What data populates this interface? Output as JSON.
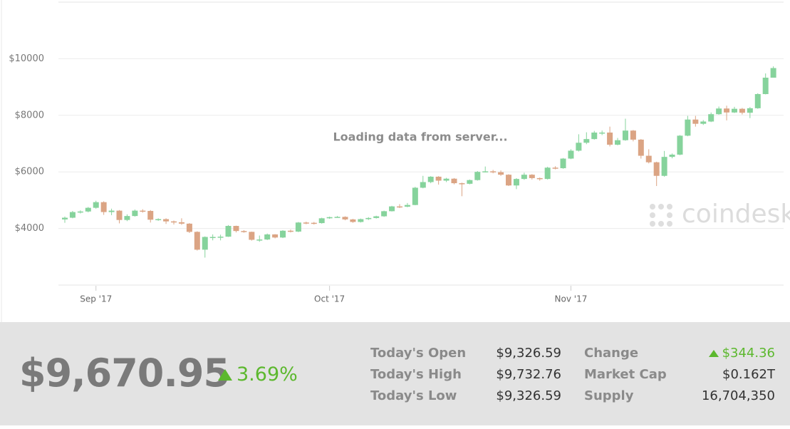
{
  "chart_data": {
    "type": "candlestick",
    "annotation": "Loading data from server...",
    "watermark": "coindesk",
    "categories": [
      null,
      null,
      null,
      null,
      "Sep '17",
      null,
      null,
      null,
      null,
      null,
      null,
      null,
      null,
      null,
      null,
      null,
      null,
      null,
      null,
      null,
      null,
      null,
      null,
      null,
      null,
      null,
      null,
      null,
      null,
      null,
      null,
      null,
      null,
      null,
      "Oct '17",
      null,
      null,
      null,
      null,
      null,
      null,
      null,
      null,
      null,
      null,
      null,
      null,
      null,
      null,
      null,
      null,
      null,
      null,
      null,
      null,
      null,
      null,
      null,
      null,
      null,
      null,
      null,
      null,
      null,
      null,
      "Nov '17",
      null,
      null,
      null,
      null,
      null,
      null,
      null,
      null,
      null,
      null,
      null,
      null,
      null,
      null,
      null,
      null,
      null,
      null,
      null,
      null,
      null,
      null,
      null,
      null,
      null,
      null
    ],
    "open": [
      4320,
      4380,
      4580,
      4600,
      4730,
      4930,
      4580,
      4630,
      4300,
      4440,
      4630,
      4620,
      4310,
      4330,
      4250,
      4220,
      4170,
      3880,
      3250,
      3700,
      3700,
      3710,
      4090,
      3910,
      3880,
      3600,
      3610,
      3790,
      3680,
      3920,
      3890,
      4210,
      4200,
      4190,
      4360,
      4400,
      4410,
      4320,
      4230,
      4330,
      4370,
      4430,
      4610,
      4780,
      4770,
      4830,
      5440,
      5640,
      5830,
      5690,
      5760,
      5600,
      5580,
      5710,
      6000,
      6020,
      5990,
      5900,
      5520,
      5750,
      5900,
      5780,
      5750,
      6150,
      6130,
      6470,
      6750,
      7030,
      7160,
      7390,
      7390,
      6960,
      7120,
      7460,
      7140,
      6570,
      6340,
      5860,
      6530,
      6610,
      7280,
      7850,
      7700,
      7780,
      8040,
      8240,
      8100,
      8230,
      8090,
      8250,
      8750,
      9330
    ],
    "high": [
      4420,
      4620,
      4640,
      4760,
      4980,
      4960,
      4700,
      4650,
      4500,
      4670,
      4680,
      4650,
      4360,
      4360,
      4280,
      4360,
      4190,
      3900,
      3720,
      3790,
      3780,
      4120,
      4100,
      3940,
      3890,
      3750,
      3820,
      3800,
      3940,
      3960,
      4230,
      4240,
      4230,
      4380,
      4420,
      4440,
      4430,
      4340,
      4350,
      4400,
      4450,
      4630,
      4800,
      4860,
      4900,
      5470,
      5860,
      5850,
      5850,
      5790,
      5780,
      5620,
      5730,
      6030,
      6190,
      6070,
      6050,
      5920,
      5780,
      5970,
      5920,
      5800,
      6180,
      6200,
      6490,
      6800,
      7330,
      7400,
      7450,
      7460,
      7600,
      7200,
      7880,
      7480,
      7160,
      6800,
      6360,
      6740,
      6650,
      7300,
      7980,
      7980,
      7830,
      8100,
      8310,
      8340,
      8300,
      8260,
      8290,
      8780,
      9480,
      9730
    ],
    "low": [
      4200,
      4360,
      4530,
      4570,
      4700,
      4480,
      4470,
      4180,
      4260,
      4420,
      4560,
      4210,
      4270,
      4160,
      4140,
      4130,
      3840,
      3220,
      2970,
      3580,
      3580,
      3700,
      3860,
      3850,
      3570,
      3530,
      3590,
      3650,
      3660,
      3860,
      3870,
      4150,
      4140,
      4170,
      4340,
      4380,
      4290,
      4200,
      4210,
      4300,
      4350,
      4410,
      4600,
      4720,
      4750,
      4820,
      5420,
      5600,
      5550,
      5640,
      5560,
      5140,
      5560,
      5690,
      5980,
      5950,
      5860,
      5500,
      5390,
      5720,
      5730,
      5690,
      5730,
      6090,
      6110,
      6450,
      6720,
      6980,
      7140,
      7300,
      6900,
      6940,
      7100,
      7080,
      6470,
      6300,
      5500,
      5830,
      6480,
      6590,
      7260,
      7600,
      7660,
      7760,
      8020,
      7820,
      8080,
      8030,
      7900,
      8230,
      8740,
      9330
    ],
    "close": [
      4380,
      4580,
      4600,
      4730,
      4930,
      4580,
      4630,
      4300,
      4440,
      4630,
      4620,
      4310,
      4330,
      4250,
      4220,
      4170,
      3880,
      3250,
      3700,
      3700,
      3710,
      4090,
      3910,
      3880,
      3600,
      3610,
      3790,
      3680,
      3920,
      3890,
      4210,
      4200,
      4190,
      4360,
      4400,
      4410,
      4320,
      4230,
      4330,
      4370,
      4430,
      4610,
      4780,
      4770,
      4830,
      5440,
      5640,
      5830,
      5690,
      5760,
      5600,
      5580,
      5710,
      6000,
      6020,
      5990,
      5900,
      5520,
      5750,
      5900,
      5780,
      5750,
      6150,
      6130,
      6470,
      6750,
      7030,
      7160,
      7390,
      7390,
      6960,
      7120,
      7460,
      7140,
      6570,
      6340,
      5860,
      6530,
      6610,
      7280,
      7850,
      7700,
      7780,
      8040,
      8240,
      8100,
      8230,
      8090,
      8250,
      8750,
      9330,
      9670
    ],
    "up_color": "#86d39c",
    "down_color": "#dba484",
    "ylim": [
      2000,
      12000
    ],
    "yticks": [
      {
        "value": 4000,
        "label": "$4000"
      },
      {
        "value": 6000,
        "label": "$6000"
      },
      {
        "value": 8000,
        "label": "$8000"
      },
      {
        "value": 10000,
        "label": "$10000"
      }
    ],
    "grid": true
  },
  "summary": {
    "price": "$9,670.95",
    "change_percent": "3.69%",
    "stats": [
      [
        {
          "label": "Today's Open",
          "value": "$9,326.59"
        },
        {
          "label": "Change",
          "value": "$344.36"
        }
      ],
      [
        {
          "label": "Today's High",
          "value": "$9,732.76"
        },
        {
          "label": "Market Cap",
          "value": "$0.162T"
        }
      ],
      [
        {
          "label": "Today's Low",
          "value": "$9,326.59"
        },
        {
          "label": "Supply",
          "value": "16,704,350"
        }
      ]
    ]
  }
}
